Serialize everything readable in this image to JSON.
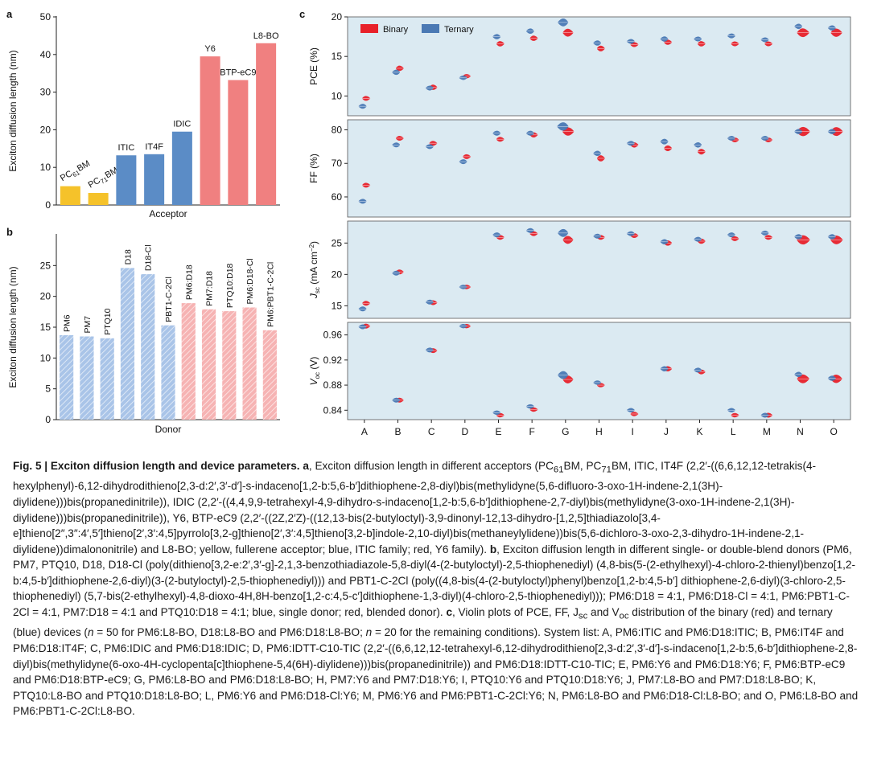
{
  "chart_data": [
    {
      "type": "bar",
      "panel_label": "a",
      "xlabel": "Acceptor",
      "ylabel": "Exciton diffusion length (nm)",
      "ylim": [
        0,
        50
      ],
      "yticks": [
        0,
        10,
        20,
        30,
        40,
        50
      ],
      "grid": false,
      "categories": [
        "PC61BM",
        "PC71BM",
        "ITIC",
        "IT4F",
        "IDIC",
        "Y6",
        "BTP-eC9",
        "L8-BO"
      ],
      "labels": [
        {
          "main": "PC",
          "sub": "61",
          "rest": "BM"
        },
        {
          "main": "PC",
          "sub": "71",
          "rest": "BM"
        },
        {
          "main": "ITIC"
        },
        {
          "main": "IT4F"
        },
        {
          "main": "IDIC"
        },
        {
          "main": "Y6"
        },
        {
          "main": "BTP-eC9"
        },
        {
          "main": "L8-BO"
        }
      ],
      "values": [
        5,
        3.2,
        13.2,
        13.5,
        19.5,
        39.5,
        33.2,
        43
      ],
      "groups": [
        "fullerene",
        "fullerene",
        "itic",
        "itic",
        "itic",
        "y6",
        "y6",
        "y6"
      ],
      "colors": {
        "fullerene": "#f5c22a",
        "itic": "#5b8cc6",
        "y6": "#f08080"
      }
    },
    {
      "type": "bar",
      "panel_label": "b",
      "xlabel": "Donor",
      "ylabel": "Exciton diffusion length (nm)",
      "ylim": [
        0,
        30
      ],
      "yticks": [
        0,
        5,
        10,
        15,
        20,
        25
      ],
      "grid": false,
      "categories": [
        "PM6",
        "PM7",
        "PTQ10",
        "D18",
        "D18-Cl",
        "PBT1-C-2Cl",
        "PM6:D18",
        "PM7:D18",
        "PTQ10:D18",
        "PM6:D18-Cl",
        "PM6:PBT1-C-2Cl"
      ],
      "values": [
        13.7,
        13.5,
        13.2,
        24.6,
        23.6,
        15.3,
        18.9,
        17.9,
        17.6,
        18.2,
        14.5
      ],
      "groups": [
        "single",
        "single",
        "single",
        "single",
        "single",
        "single",
        "blend",
        "blend",
        "blend",
        "blend",
        "blend"
      ],
      "colors": {
        "single": "#a9c4e8",
        "blend": "#f6b3b3"
      }
    },
    {
      "type": "violin",
      "panel_label": "c",
      "categories": [
        "A",
        "B",
        "C",
        "D",
        "E",
        "F",
        "G",
        "H",
        "I",
        "J",
        "K",
        "L",
        "M",
        "N",
        "O"
      ],
      "legend": [
        "Binary",
        "Ternary"
      ],
      "legend_position": "top-left",
      "colors": {
        "binary": "#e8212a",
        "ternary": "#4a79b4",
        "background": "#dbeaf2"
      },
      "panels": [
        {
          "ylabel": "PCE (%)",
          "ylim": [
            7.5,
            20
          ],
          "yticks": [
            10,
            15,
            20
          ],
          "binary": [
            9.7,
            13.5,
            11.1,
            12.5,
            16.6,
            17.3,
            18.0,
            16.0,
            16.5,
            16.8,
            16.6,
            16.6,
            16.6,
            18.0,
            18.0
          ],
          "ternary": [
            8.7,
            13.0,
            11.0,
            12.3,
            17.5,
            18.2,
            19.3,
            16.7,
            16.9,
            17.2,
            17.2,
            17.6,
            17.1,
            18.8,
            18.6
          ],
          "binary_width": [
            0.05,
            0.06,
            0.06,
            0.04,
            0.06,
            0.06,
            0.12,
            0.07,
            0.05,
            0.06,
            0.06,
            0.05,
            0.05,
            0.14,
            0.13
          ],
          "ternary_width": [
            0.05,
            0.06,
            0.05,
            0.04,
            0.06,
            0.06,
            0.12,
            0.06,
            0.05,
            0.06,
            0.05,
            0.05,
            0.05,
            0.06,
            0.06
          ]
        },
        {
          "ylabel": "FF (%)",
          "ylim": [
            54,
            83
          ],
          "yticks": [
            60,
            70,
            80
          ],
          "binary": [
            63.5,
            77.5,
            76.0,
            72.0,
            77.2,
            78.5,
            79.5,
            71.5,
            75.5,
            74.5,
            73.5,
            77.0,
            77.0,
            79.5,
            79.5
          ],
          "ternary": [
            58.7,
            75.5,
            75.0,
            70.5,
            79.0,
            79.0,
            81.0,
            73.0,
            76.0,
            76.5,
            75.5,
            77.5,
            77.5,
            79.5,
            79.5
          ],
          "binary_width": [
            0.05,
            0.05,
            0.05,
            0.05,
            0.05,
            0.06,
            0.13,
            0.08,
            0.06,
            0.07,
            0.07,
            0.05,
            0.05,
            0.15,
            0.14
          ],
          "ternary_width": [
            0.05,
            0.05,
            0.05,
            0.05,
            0.05,
            0.05,
            0.13,
            0.06,
            0.05,
            0.07,
            0.06,
            0.05,
            0.05,
            0.06,
            0.06
          ]
        },
        {
          "ylabel_main": "J",
          "ylabel_sub": "sc",
          "ylabel_rest": " (mA cm",
          "ylabel_sup": "−2",
          "ylabel_end": ")",
          "ylim": [
            13,
            28.5
          ],
          "yticks": [
            15,
            20,
            25
          ],
          "binary": [
            15.4,
            20.4,
            15.5,
            18.0,
            25.9,
            26.5,
            25.5,
            25.9,
            26.2,
            25.0,
            25.3,
            25.7,
            25.9,
            25.5,
            25.5
          ],
          "ternary": [
            14.5,
            20.2,
            15.6,
            18.0,
            26.3,
            27.0,
            26.6,
            26.1,
            26.5,
            25.2,
            25.6,
            26.3,
            26.6,
            26.0,
            26.0
          ],
          "binary_width": [
            0.05,
            0.05,
            0.05,
            0.04,
            0.05,
            0.05,
            0.12,
            0.05,
            0.05,
            0.06,
            0.06,
            0.05,
            0.05,
            0.15,
            0.14
          ],
          "ternary_width": [
            0.05,
            0.05,
            0.05,
            0.04,
            0.05,
            0.05,
            0.12,
            0.05,
            0.05,
            0.06,
            0.05,
            0.05,
            0.05,
            0.06,
            0.06
          ]
        },
        {
          "ylabel_main": "V",
          "ylabel_sub": "oc",
          "ylabel_rest": " (V)",
          "ylabel_sup": "",
          "ylabel_end": "",
          "ylim": [
            0.825,
            0.98
          ],
          "yticks": [
            0.84,
            0.88,
            0.92,
            0.96
          ],
          "binary": [
            0.974,
            0.856,
            0.935,
            0.974,
            0.832,
            0.841,
            0.889,
            0.88,
            0.834,
            0.906,
            0.901,
            0.832,
            0.832,
            0.89,
            0.89
          ],
          "ternary": [
            0.973,
            0.856,
            0.936,
            0.974,
            0.836,
            0.846,
            0.896,
            0.884,
            0.84,
            0.906,
            0.904,
            0.84,
            0.832,
            0.897,
            0.891
          ],
          "binary_width": [
            0.05,
            0.05,
            0.05,
            0.04,
            0.04,
            0.04,
            0.12,
            0.04,
            0.04,
            0.06,
            0.05,
            0.04,
            0.05,
            0.14,
            0.13
          ],
          "ternary_width": [
            0.05,
            0.05,
            0.05,
            0.04,
            0.04,
            0.04,
            0.12,
            0.04,
            0.04,
            0.06,
            0.05,
            0.04,
            0.05,
            0.06,
            0.06
          ]
        }
      ]
    }
  ],
  "caption": {
    "title": "Fig. 5 | Exciton diffusion length and device parameters.",
    "a_label": "a",
    "a_text": ", Exciton diffusion length in different acceptors (PC",
    "a_sub61": "61",
    "a_text_bm1": "BM, PC",
    "a_sub71": "71",
    "a_text_rest": "BM, ITIC, IT4F (2,2′-((6,6,12,12-tetrakis(4-hexylphenyl)-6,12-dihydrodithieno[2,3-d:2′,3′-d′]-s-indaceno[1,2-b:5,6-b′]dithiophene-2,8-diyl)bis(methylidyne(5,6-difluoro-3-oxo-1H-indene-2,1(3H)-diylidene)))bis(propanedinitrile)), IDIC (2,2′-((4,4,9,9-tetrahexyl-4,9-dihydro-s-indaceno[1,2-b:5,6-b′]dithiophene-2,7-diyl)bis(methylidyne(3-oxo-1H-indene-2,1(3H)-diylidene)))bis(propanedinitrile)), Y6, BTP-eC9 (2,2′-((2Z,2′Z)-((12,13-bis(2-butyloctyl)-3,9-dinonyl-12,13-dihydro-[1,2,5]thiadiazolo[3,4-e]thieno[2″,3″:4′,5′]thieno[2′,3′:4,5]pyrrolo[3,2-g]thieno[2′,3′:4,5]thieno[3,2-b]indole-2,10-diyl)bis(methaneylylidene))bis(5,6-dichloro-3-oxo-2,3-dihydro-1H-indene-2,1-diylidene))dimalononitrile) and L8-BO; yellow, fullerene acceptor; blue, ITIC family; red, Y6 family).",
    "b_label": "b",
    "b_text": ", Exciton diffusion length in different single- or double-blend donors (PM6, PM7, PTQ10, D18, D18-Cl (poly(dithieno[3,2-e:2′,3′-g]-2,1,3-benzothiadiazole-5,8-diyl(4-(2-butyloctyl)-2,5-thiophenediyl) (4,8-bis(5-(2-ethylhexyl)-4-chloro-2-thienyl)benzo[1,2-b:4,5-b′]dithiophene-2,6-diyl)(3-(2-butyloctyl)-2,5-thiophenediyl))) and PBT1-C-2Cl (poly((4,8-bis(4-(2-butyloctyl)phenyl)benzo[1,2-b:4,5-b′] dithiophene-2,6-diyl)(3-chloro-2,5-thiophenediyl) (5,7-bis(2-ethylhexyl)-4,8-dioxo-4H,8H-benzo[1,2-c:4,5-c′]dithiophene-1,3-diyl)(4-chloro-2,5-thiophenediyl))); PM6:D18 = 4:1, PM6:D18-Cl = 4:1, PM6:PBT1-C-2Cl = 4:1, PM7:D18 = 4:1 and PTQ10:D18 = 4:1; blue, single donor; red, blended donor).",
    "c_label": "c",
    "c_text": ", Violin plots of PCE, FF, J",
    "c_sub_sc": "sc",
    "c_text2": " and V",
    "c_sub_oc": "oc",
    "c_text3": " distribution of the binary (red) and ternary (blue) devices (",
    "c_n1": "n",
    "c_text4": " = 50 for PM6:L8-BO, D18:L8-BO and PM6:D18:L8-BO; ",
    "c_n2": "n",
    "c_text5": " = 20 for the remaining conditions). System list: A, PM6:ITIC and PM6:D18:ITIC; B, PM6:IT4F and PM6:D18:IT4F; C, PM6:IDIC and PM6:D18:IDIC; D, PM6:IDTT-C10-TIC (2,2′-((6,6,12,12-tetrahexyl-6,12-dihydrodithieno[2,3-d:2′,3′-d′]-s-indaceno[1,2-b:5,6-b′]dithiophene-2,8-diyl)bis(methylidyne(6-oxo-4H-cyclopenta[c]thiophene-5,4(6H)-diylidene)))bis(propanedinitrile)) and PM6:D18:IDTT-C10-TIC; E, PM6:Y6 and PM6:D18:Y6; F, PM6:BTP-eC9 and PM6:D18:BTP-eC9; G, PM6:L8-BO and PM6:D18:L8-BO; H, PM7:Y6 and PM7:D18:Y6; I, PTQ10:Y6 and PTQ10:D18:Y6; J, PM7:L8-BO and PM7:D18:L8-BO; K, PTQ10:L8-BO and PTQ10:D18:L8-BO; L, PM6:Y6 and PM6:D18-Cl:Y6; M, PM6:Y6 and PM6:PBT1-C-2Cl:Y6; N, PM6:L8-BO and PM6:D18-Cl:L8-BO; and O, PM6:L8-BO and PM6:PBT1-C-2Cl:L8-BO."
  }
}
